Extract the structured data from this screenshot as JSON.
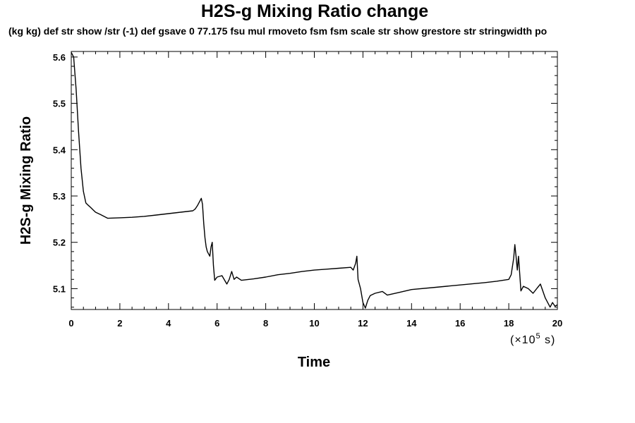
{
  "chart_data": {
    "type": "line",
    "title": "H2S-g Mixing Ratio change",
    "subtitle": "(kg kg) def str show /str (-1) def gsave 0 77.175 fsu mul rmoveto fsm fsm scale str show grestore str stringwidth po",
    "xlabel": "Time",
    "ylabel": "H2S-g Mixing Ratio",
    "x_unit_prefix": "(×10",
    "x_unit_exponent": "5",
    "x_unit_suffix": " s)",
    "xlim": [
      0,
      20
    ],
    "ylim": [
      5.055,
      5.612
    ],
    "xticks": [
      0,
      2,
      4,
      6,
      8,
      10,
      12,
      14,
      16,
      18,
      20
    ],
    "xtick_labels": [
      "0",
      "2",
      "4",
      "6",
      "8",
      "10",
      "12",
      "14",
      "16",
      "18",
      "20"
    ],
    "yticks": [
      5.1,
      5.2,
      5.3,
      5.4,
      5.5,
      5.6
    ],
    "ytick_labels": [
      "5.1",
      "5.2",
      "5.3",
      "5.4",
      "5.5",
      "5.6"
    ],
    "grid": false,
    "series": [
      {
        "x": [
          0.0,
          0.1,
          0.2,
          0.3,
          0.4,
          0.5,
          0.6,
          0.7,
          0.8,
          0.9,
          1.0,
          1.2,
          1.5,
          2.0,
          2.5,
          3.0,
          3.5,
          4.0,
          4.5,
          5.0,
          5.1,
          5.2,
          5.3,
          5.35,
          5.4,
          5.45,
          5.5,
          5.55,
          5.6,
          5.7,
          5.75,
          5.8,
          5.85,
          5.9,
          6.0,
          6.2,
          6.4,
          6.5,
          6.6,
          6.7,
          6.8,
          7.0,
          7.5,
          8.0,
          8.5,
          9.0,
          9.5,
          10.0,
          10.5,
          11.0,
          11.5,
          11.6,
          11.7,
          11.75,
          11.8,
          11.9,
          12.0,
          12.1,
          12.2,
          12.3,
          12.5,
          12.8,
          13.0,
          13.5,
          14.0,
          15.0,
          16.0,
          17.0,
          17.5,
          18.0,
          18.1,
          18.2,
          18.25,
          18.3,
          18.35,
          18.4,
          18.5,
          18.6,
          18.8,
          19.0,
          19.3,
          19.5,
          19.7,
          19.8,
          19.9,
          20.0
        ],
        "y": [
          5.61,
          5.6,
          5.53,
          5.44,
          5.36,
          5.31,
          5.285,
          5.28,
          5.275,
          5.27,
          5.265,
          5.26,
          5.252,
          5.253,
          5.254,
          5.256,
          5.259,
          5.262,
          5.265,
          5.268,
          5.272,
          5.28,
          5.29,
          5.295,
          5.282,
          5.24,
          5.21,
          5.19,
          5.18,
          5.17,
          5.19,
          5.2,
          5.15,
          5.118,
          5.125,
          5.128,
          5.11,
          5.12,
          5.137,
          5.12,
          5.125,
          5.118,
          5.121,
          5.125,
          5.13,
          5.133,
          5.137,
          5.14,
          5.142,
          5.144,
          5.146,
          5.14,
          5.155,
          5.17,
          5.12,
          5.1,
          5.07,
          5.058,
          5.075,
          5.085,
          5.09,
          5.094,
          5.086,
          5.092,
          5.098,
          5.103,
          5.108,
          5.113,
          5.116,
          5.12,
          5.13,
          5.165,
          5.195,
          5.17,
          5.14,
          5.17,
          5.095,
          5.105,
          5.1,
          5.09,
          5.11,
          5.08,
          5.06,
          5.07,
          5.062,
          5.065
        ]
      }
    ]
  }
}
